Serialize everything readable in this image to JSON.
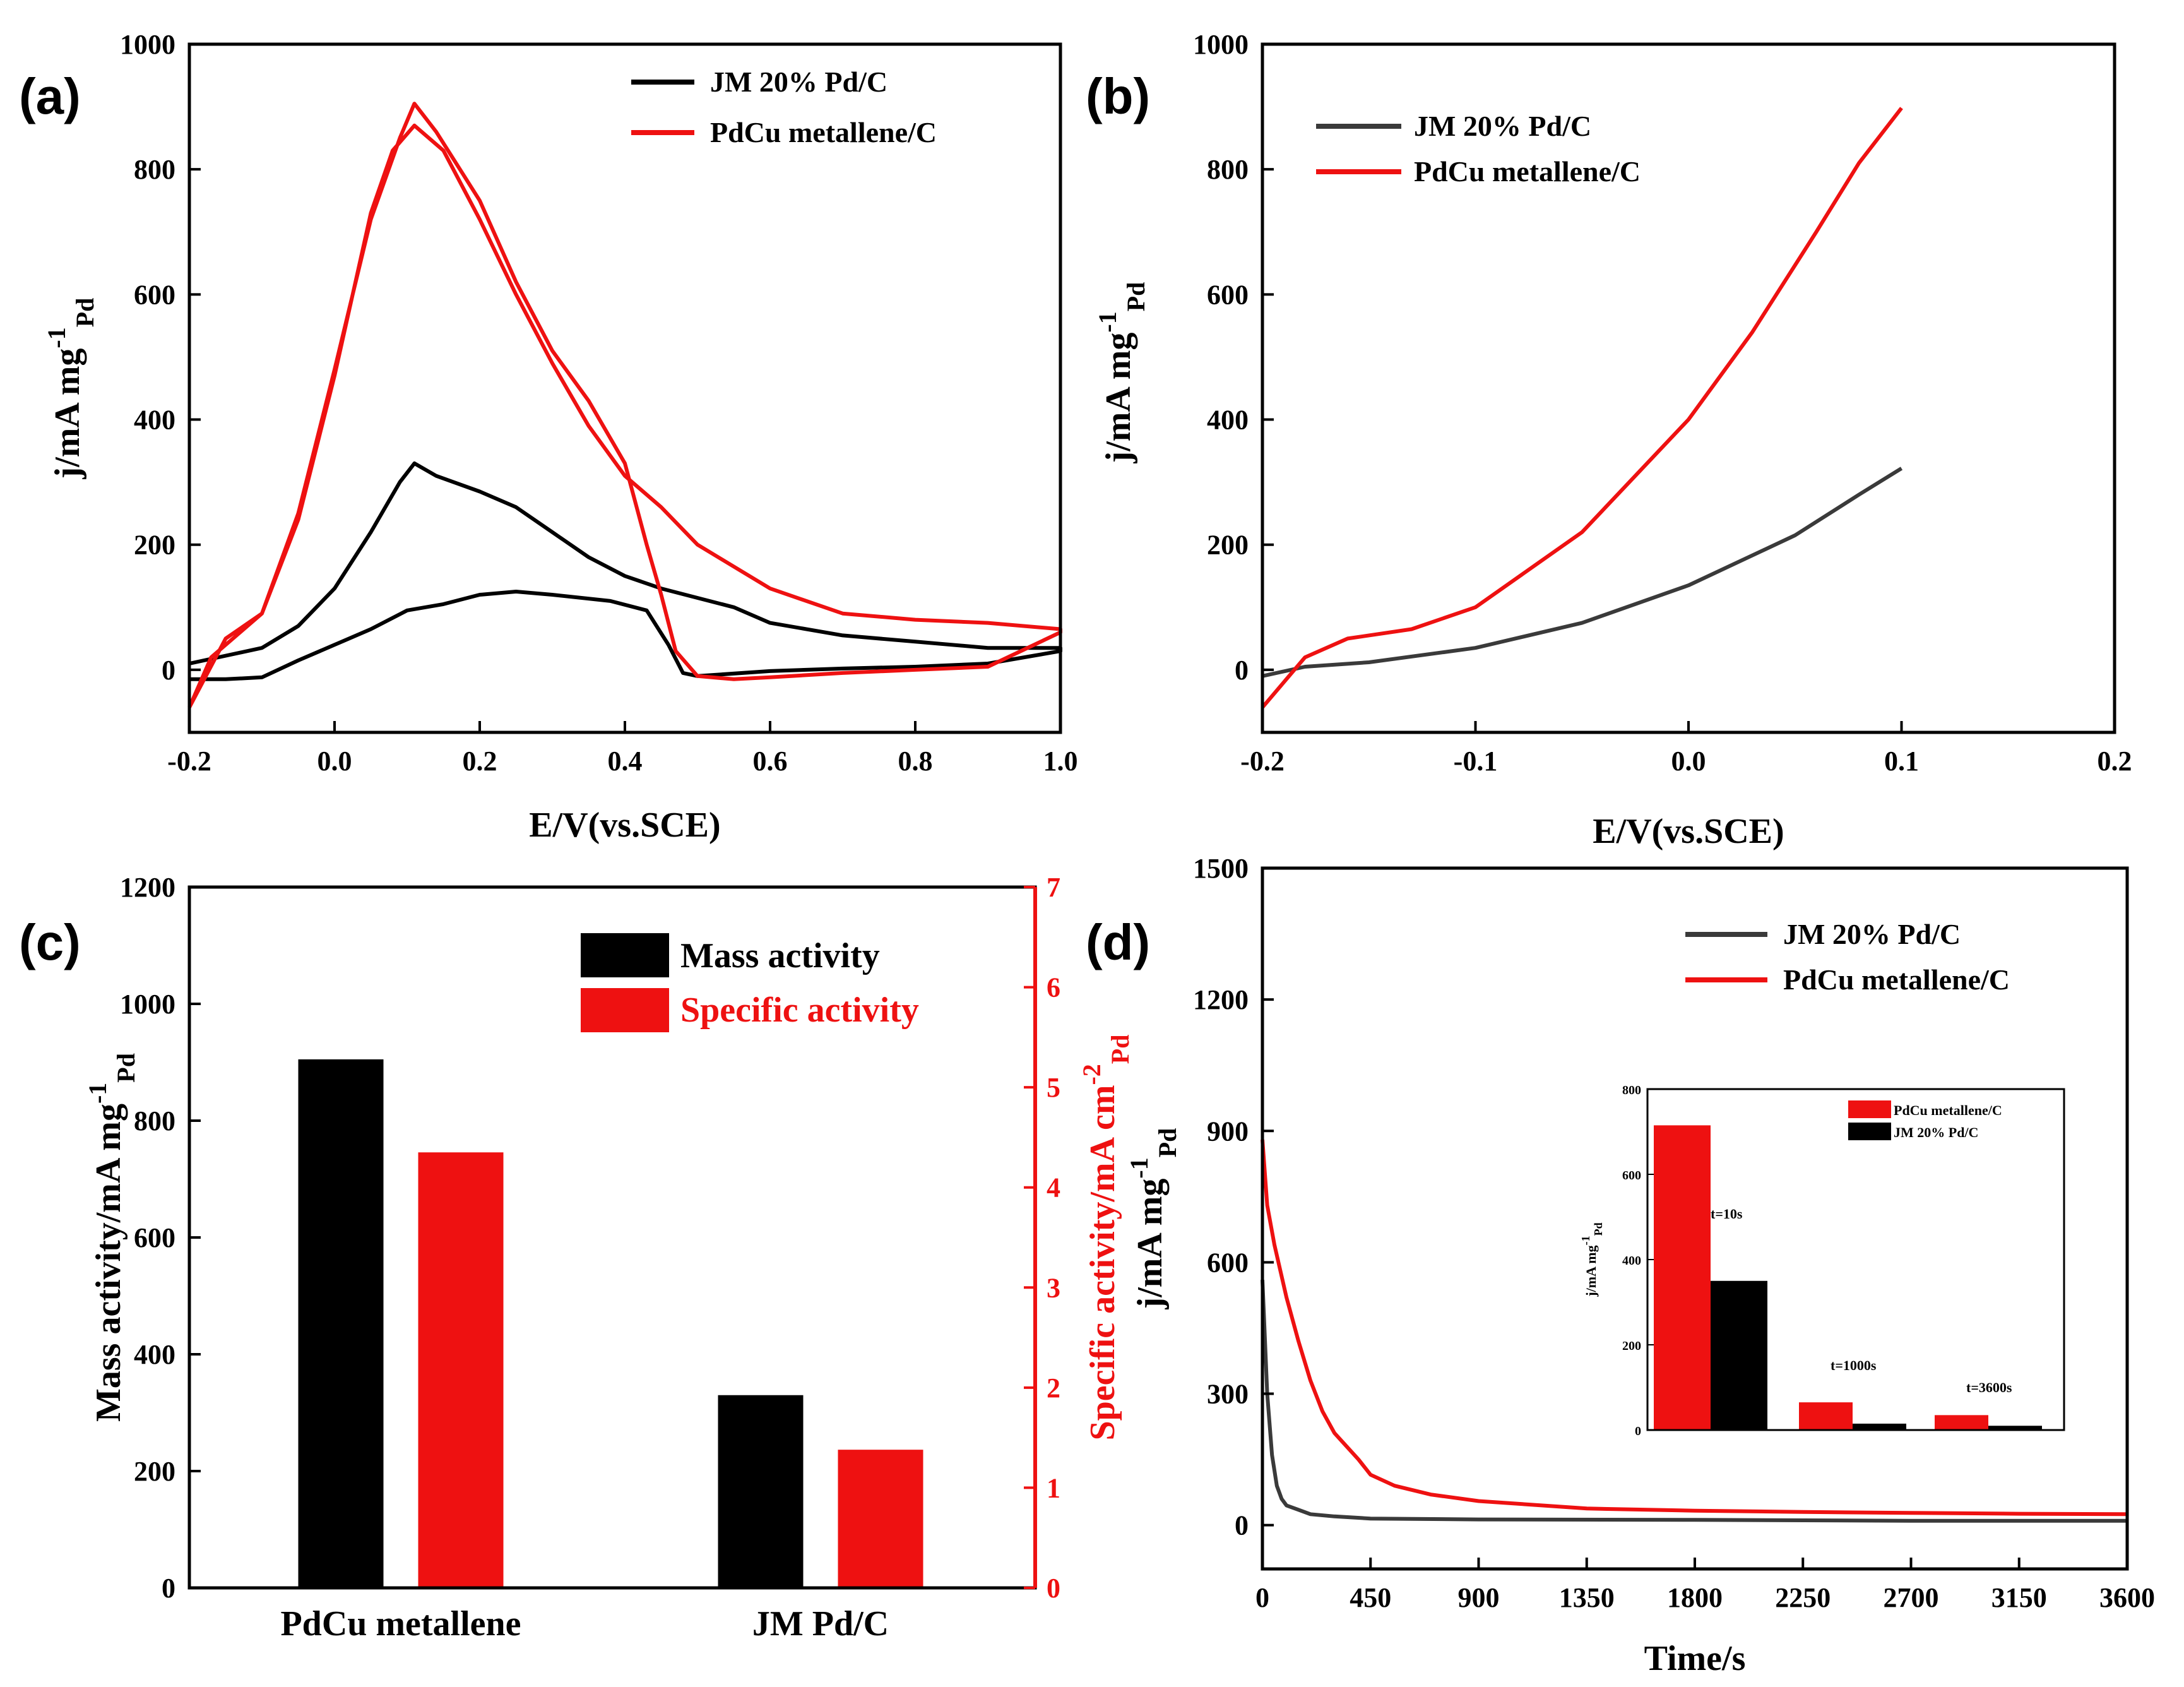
{
  "colors": {
    "black": "#000000",
    "gray": "#3a3a3a",
    "red": "#ee1111"
  },
  "chart_data": [
    {
      "panel": "(a)",
      "type": "line",
      "xlabel": "E/V(vs.SCE)",
      "ylabel_main": "j/mA mg",
      "ylabel_sup": "-1",
      "ylabel_sub": "Pd",
      "xlim": [
        -0.2,
        1.0
      ],
      "ylim": [
        -100,
        1000
      ],
      "xticks": [
        "-0.2",
        "0.0",
        "0.2",
        "0.4",
        "0.6",
        "0.8",
        "1.0"
      ],
      "yticks": [
        "0",
        "200",
        "400",
        "600",
        "800",
        "1000"
      ],
      "legend": [
        "JM 20% Pd/C",
        "PdCu metallene/C"
      ],
      "series": [
        {
          "name": "JM 20% Pd/C",
          "color": "#000000",
          "points": [
            [
              -0.2,
              10
            ],
            [
              -0.1,
              35
            ],
            [
              -0.05,
              70
            ],
            [
              0.0,
              130
            ],
            [
              0.05,
              220
            ],
            [
              0.09,
              300
            ],
            [
              0.11,
              330
            ],
            [
              0.14,
              310
            ],
            [
              0.2,
              285
            ],
            [
              0.25,
              260
            ],
            [
              0.3,
              220
            ],
            [
              0.35,
              180
            ],
            [
              0.4,
              150
            ],
            [
              0.45,
              130
            ],
            [
              0.5,
              115
            ],
            [
              0.55,
              100
            ],
            [
              0.6,
              75
            ],
            [
              0.7,
              55
            ],
            [
              0.8,
              45
            ],
            [
              0.9,
              35
            ],
            [
              1.0,
              35
            ],
            [
              1.0,
              30
            ],
            [
              0.9,
              10
            ],
            [
              0.8,
              5
            ],
            [
              0.7,
              2
            ],
            [
              0.6,
              -2
            ],
            [
              0.5,
              -10
            ],
            [
              0.48,
              -5
            ],
            [
              0.46,
              40
            ],
            [
              0.43,
              95
            ],
            [
              0.38,
              110
            ],
            [
              0.3,
              120
            ],
            [
              0.25,
              125
            ],
            [
              0.2,
              120
            ],
            [
              0.15,
              105
            ],
            [
              0.1,
              95
            ],
            [
              0.05,
              65
            ],
            [
              0.0,
              40
            ],
            [
              -0.05,
              15
            ],
            [
              -0.1,
              -12
            ],
            [
              -0.15,
              -15
            ],
            [
              -0.2,
              -15
            ]
          ]
        },
        {
          "name": "PdCu metallene/C",
          "color": "#ee1111",
          "points": [
            [
              -0.2,
              -60
            ],
            [
              -0.17,
              20
            ],
            [
              -0.13,
              60
            ],
            [
              -0.1,
              90
            ],
            [
              -0.05,
              250
            ],
            [
              0.0,
              480
            ],
            [
              0.05,
              720
            ],
            [
              0.09,
              850
            ],
            [
              0.11,
              905
            ],
            [
              0.14,
              860
            ],
            [
              0.2,
              750
            ],
            [
              0.25,
              620
            ],
            [
              0.3,
              510
            ],
            [
              0.35,
              430
            ],
            [
              0.4,
              330
            ],
            [
              0.43,
              200
            ],
            [
              0.45,
              120
            ],
            [
              0.47,
              30
            ],
            [
              0.5,
              -10
            ],
            [
              0.55,
              -15
            ],
            [
              0.6,
              -12
            ],
            [
              0.7,
              -5
            ],
            [
              0.8,
              0
            ],
            [
              0.9,
              5
            ],
            [
              1.0,
              60
            ],
            [
              1.0,
              65
            ],
            [
              0.9,
              75
            ],
            [
              0.8,
              80
            ],
            [
              0.7,
              90
            ],
            [
              0.6,
              130
            ],
            [
              0.5,
              200
            ],
            [
              0.45,
              260
            ],
            [
              0.4,
              310
            ],
            [
              0.35,
              390
            ],
            [
              0.3,
              490
            ],
            [
              0.25,
              600
            ],
            [
              0.2,
              720
            ],
            [
              0.15,
              830
            ],
            [
              0.11,
              870
            ],
            [
              0.08,
              830
            ],
            [
              0.05,
              730
            ],
            [
              0.0,
              470
            ],
            [
              -0.05,
              240
            ],
            [
              -0.1,
              90
            ],
            [
              -0.15,
              50
            ],
            [
              -0.2,
              -60
            ]
          ]
        }
      ]
    },
    {
      "panel": "(b)",
      "type": "line",
      "xlabel": "E/V(vs.SCE)",
      "ylabel_main": "j/mA mg",
      "ylabel_sup": "-1",
      "ylabel_sub": "Pd",
      "xlim": [
        -0.2,
        0.2
      ],
      "ylim": [
        -100,
        1000
      ],
      "xticks": [
        "-0.2",
        "-0.1",
        "0.0",
        "0.1",
        "0.2"
      ],
      "yticks": [
        "0",
        "200",
        "400",
        "600",
        "800",
        "1000"
      ],
      "legend": [
        "JM 20% Pd/C",
        "PdCu metallene/C"
      ],
      "series": [
        {
          "name": "JM 20% Pd/C",
          "color": "#3a3a3a",
          "points": [
            [
              -0.2,
              -10
            ],
            [
              -0.18,
              5
            ],
            [
              -0.15,
              12
            ],
            [
              -0.1,
              35
            ],
            [
              -0.05,
              75
            ],
            [
              0.0,
              135
            ],
            [
              0.05,
              215
            ],
            [
              0.08,
              280
            ],
            [
              0.1,
              322
            ]
          ]
        },
        {
          "name": "PdCu metallene/C",
          "color": "#ee1111",
          "points": [
            [
              -0.2,
              -60
            ],
            [
              -0.18,
              20
            ],
            [
              -0.16,
              50
            ],
            [
              -0.13,
              65
            ],
            [
              -0.1,
              100
            ],
            [
              -0.05,
              220
            ],
            [
              0.0,
              400
            ],
            [
              0.03,
              540
            ],
            [
              0.06,
              700
            ],
            [
              0.08,
              810
            ],
            [
              0.1,
              898
            ]
          ]
        }
      ]
    },
    {
      "panel": "(c)",
      "type": "bar",
      "categories": [
        "PdCu metallene",
        "JM Pd/C"
      ],
      "ylabel_left": "Mass activity/mA mg",
      "ylabel_left_sup": "-1",
      "ylabel_left_sub": "Pd",
      "ylabel_right": "Specific activity/mA cm",
      "ylabel_right_sup": "-2",
      "ylabel_right_sub": "Pd",
      "ylim_left": [
        0,
        1200
      ],
      "ylim_right": [
        0,
        7
      ],
      "yticks_left": [
        "0",
        "200",
        "400",
        "600",
        "800",
        "1000",
        "1200"
      ],
      "yticks_right": [
        "0",
        "1",
        "2",
        "3",
        "4",
        "5",
        "6",
        "7"
      ],
      "series": [
        {
          "name": "Mass activity",
          "color": "#000000",
          "axis": "left",
          "values": [
            905,
            330
          ]
        },
        {
          "name": "Specific activity",
          "color": "#ee1111",
          "axis": "right",
          "values": [
            4.35,
            1.38
          ]
        }
      ]
    },
    {
      "panel": "(d)",
      "type": "line",
      "xlabel": "Time/s",
      "ylabel_main": "j/mA mg",
      "ylabel_sup": "-1",
      "ylabel_sub": "Pd",
      "xlim": [
        0,
        3600
      ],
      "ylim": [
        -100,
        1500
      ],
      "xticks": [
        "0",
        "450",
        "900",
        "1350",
        "1800",
        "2250",
        "2700",
        "3150",
        "3600"
      ],
      "yticks": [
        "0",
        "300",
        "600",
        "900",
        "1200",
        "1500"
      ],
      "legend": [
        "JM 20% Pd/C",
        "PdCu metallene/C"
      ],
      "series": [
        {
          "name": "JM 20% Pd/C",
          "color": "#3a3a3a",
          "points": [
            [
              0,
              560
            ],
            [
              20,
              300
            ],
            [
              40,
              160
            ],
            [
              60,
              90
            ],
            [
              80,
              60
            ],
            [
              100,
              45
            ],
            [
              150,
              35
            ],
            [
              200,
              25
            ],
            [
              300,
              20
            ],
            [
              450,
              15
            ],
            [
              900,
              13
            ],
            [
              1800,
              12
            ],
            [
              2700,
              10
            ],
            [
              3600,
              10
            ]
          ]
        },
        {
          "name": "PdCu metallene/C",
          "color": "#ee1111",
          "points": [
            [
              0,
              880
            ],
            [
              20,
              730
            ],
            [
              50,
              640
            ],
            [
              100,
              520
            ],
            [
              150,
              420
            ],
            [
              200,
              330
            ],
            [
              250,
              260
            ],
            [
              300,
              210
            ],
            [
              400,
              150
            ],
            [
              450,
              115
            ],
            [
              550,
              90
            ],
            [
              700,
              70
            ],
            [
              900,
              55
            ],
            [
              1350,
              38
            ],
            [
              1800,
              33
            ],
            [
              2250,
              30
            ],
            [
              2700,
              28
            ],
            [
              3150,
              26
            ],
            [
              3600,
              25
            ]
          ]
        }
      ],
      "inset": {
        "type": "bar",
        "ylabel_main": "j/mA mg",
        "ylabel_sup": "-1",
        "ylabel_sub": "Pd",
        "ylim": [
          0,
          800
        ],
        "yticks": [
          "0",
          "200",
          "400",
          "600",
          "800"
        ],
        "groups": [
          "t=10s",
          "t=1000s",
          "t=3600s"
        ],
        "legend": [
          "PdCu metallene/C",
          "JM 20% Pd/C"
        ],
        "series": [
          {
            "name": "PdCu metallene/C",
            "color": "#ee1111",
            "values": [
              715,
              65,
              35
            ]
          },
          {
            "name": "JM 20% Pd/C",
            "color": "#000000",
            "values": [
              350,
              15,
              10
            ]
          }
        ]
      }
    }
  ]
}
